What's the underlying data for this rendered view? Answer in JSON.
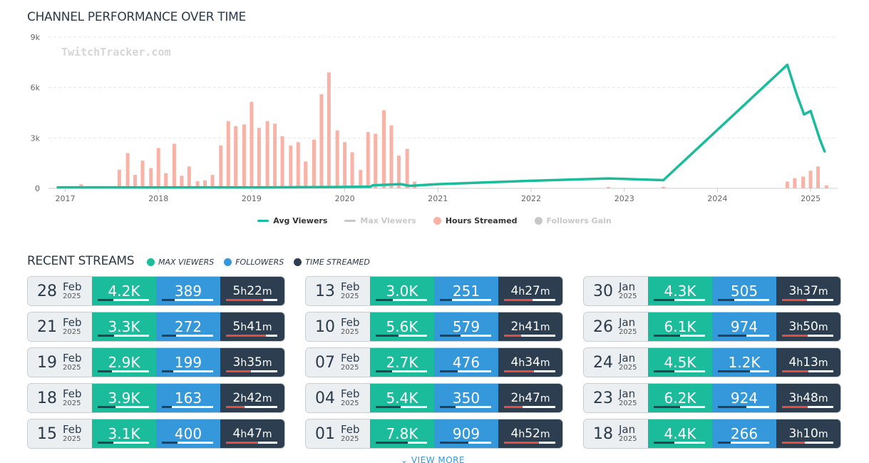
{
  "chart_section": {
    "title": "CHANNEL PERFORMANCE OVER TIME",
    "watermark": "TwitchTracker.com"
  },
  "chart_data": {
    "type": "line",
    "x_range": [
      2016.82,
      2025.29
    ],
    "ylim": [
      0,
      9000
    ],
    "y_ticks": [
      {
        "value": 0,
        "label": "0"
      },
      {
        "value": 3000,
        "label": "3k"
      },
      {
        "value": 6000,
        "label": "6k"
      },
      {
        "value": 9000,
        "label": "9k"
      }
    ],
    "x_ticks": [
      {
        "value": 2017,
        "label": "2017"
      },
      {
        "value": 2018,
        "label": "2018"
      },
      {
        "value": 2019,
        "label": "2019"
      },
      {
        "value": 2020,
        "label": "2020"
      },
      {
        "value": 2021,
        "label": "2021"
      },
      {
        "value": 2022,
        "label": "2022"
      },
      {
        "value": 2023,
        "label": "2023"
      },
      {
        "value": 2024,
        "label": "2024"
      },
      {
        "value": 2025,
        "label": "2025"
      }
    ],
    "grid": true,
    "legend_position": "bottom",
    "series": [
      {
        "name": "Avg Viewers",
        "kind": "line",
        "color": "#1abc9c",
        "visible": true,
        "points": [
          [
            2016.92,
            60
          ],
          [
            2017.5,
            60
          ],
          [
            2018.0,
            50
          ],
          [
            2018.5,
            60
          ],
          [
            2019.0,
            50
          ],
          [
            2019.5,
            70
          ],
          [
            2019.9,
            80
          ],
          [
            2020.28,
            100
          ],
          [
            2020.3,
            180
          ],
          [
            2020.6,
            250
          ],
          [
            2020.7,
            150
          ],
          [
            2021.0,
            250
          ],
          [
            2022.0,
            450
          ],
          [
            2022.83,
            590
          ],
          [
            2023.0,
            560
          ],
          [
            2023.42,
            490
          ],
          [
            2024.75,
            7350
          ],
          [
            2024.85,
            5600
          ],
          [
            2024.93,
            4400
          ],
          [
            2025.0,
            4600
          ],
          [
            2025.1,
            2900
          ],
          [
            2025.15,
            2200
          ]
        ]
      },
      {
        "name": "Max Viewers",
        "kind": "line",
        "color": "#c8c8c8",
        "visible": false,
        "points": []
      },
      {
        "name": "Hours Streamed",
        "kind": "bar",
        "color": "#f9b2a6",
        "visible": true,
        "points": [
          [
            2017.17,
            240
          ],
          [
            2017.58,
            1100
          ],
          [
            2017.67,
            2100
          ],
          [
            2017.75,
            800
          ],
          [
            2017.83,
            1650
          ],
          [
            2017.92,
            1200
          ],
          [
            2018.0,
            2400
          ],
          [
            2018.08,
            900
          ],
          [
            2018.17,
            2650
          ],
          [
            2018.25,
            750
          ],
          [
            2018.33,
            1300
          ],
          [
            2018.42,
            420
          ],
          [
            2018.5,
            480
          ],
          [
            2018.58,
            800
          ],
          [
            2018.67,
            2550
          ],
          [
            2018.75,
            4000
          ],
          [
            2018.83,
            3700
          ],
          [
            2018.92,
            3800
          ],
          [
            2019.0,
            5150
          ],
          [
            2019.08,
            3600
          ],
          [
            2019.17,
            4000
          ],
          [
            2019.25,
            3850
          ],
          [
            2019.33,
            3100
          ],
          [
            2019.42,
            2550
          ],
          [
            2019.5,
            2750
          ],
          [
            2019.58,
            1600
          ],
          [
            2019.67,
            2900
          ],
          [
            2019.75,
            5600
          ],
          [
            2019.83,
            6900
          ],
          [
            2019.92,
            3450
          ],
          [
            2020.0,
            2750
          ],
          [
            2020.08,
            2150
          ],
          [
            2020.17,
            1100
          ],
          [
            2020.25,
            3350
          ],
          [
            2020.33,
            3250
          ],
          [
            2020.42,
            4650
          ],
          [
            2020.5,
            3750
          ],
          [
            2020.58,
            1950
          ],
          [
            2020.67,
            2350
          ],
          [
            2020.75,
            400
          ],
          [
            2022.83,
            80
          ],
          [
            2023.42,
            90
          ],
          [
            2024.75,
            400
          ],
          [
            2024.83,
            600
          ],
          [
            2024.92,
            700
          ],
          [
            2025.0,
            1050
          ],
          [
            2025.08,
            1300
          ],
          [
            2025.17,
            180
          ]
        ]
      },
      {
        "name": "Followers Gain",
        "kind": "bar",
        "color": "#c8c8c8",
        "visible": false,
        "points": []
      }
    ]
  },
  "recent": {
    "title": "RECENT STREAMS",
    "legend": [
      {
        "label": "MAX VIEWERS",
        "color": "#1abc9c"
      },
      {
        "label": "FOLLOWERS",
        "color": "#3498db"
      },
      {
        "label": "TIME STREAMED",
        "color": "#2c3e50"
      }
    ],
    "view_more": "⌄ VIEW MORE",
    "columns": [
      [
        {
          "day": "28",
          "mon": "Feb",
          "year": "2025",
          "viewers": "4.2K",
          "followers": "389",
          "h": "5",
          "m": "22",
          "vfill": 0.3,
          "ffill": 0.25,
          "tfill": 0.72
        },
        {
          "day": "21",
          "mon": "Feb",
          "year": "2025",
          "viewers": "3.3K",
          "followers": "272",
          "h": "5",
          "m": "41",
          "vfill": 0.32,
          "ffill": 0.28,
          "tfill": 0.78
        },
        {
          "day": "19",
          "mon": "Feb",
          "year": "2025",
          "viewers": "2.9K",
          "followers": "199",
          "h": "3",
          "m": "35",
          "vfill": 0.28,
          "ffill": 0.22,
          "tfill": 0.48
        },
        {
          "day": "18",
          "mon": "Feb",
          "year": "2025",
          "viewers": "3.9K",
          "followers": "163",
          "h": "2",
          "m": "42",
          "vfill": 0.35,
          "ffill": 0.2,
          "tfill": 0.36
        },
        {
          "day": "15",
          "mon": "Feb",
          "year": "2025",
          "viewers": "3.1K",
          "followers": "400",
          "h": "4",
          "m": "47",
          "vfill": 0.3,
          "ffill": 0.3,
          "tfill": 0.62
        }
      ],
      [
        {
          "day": "13",
          "mon": "Feb",
          "year": "2025",
          "viewers": "3.0K",
          "followers": "251",
          "h": "4",
          "m": "27",
          "vfill": 0.34,
          "ffill": 0.24,
          "tfill": 0.55
        },
        {
          "day": "10",
          "mon": "Feb",
          "year": "2025",
          "viewers": "5.6K",
          "followers": "579",
          "h": "2",
          "m": "41",
          "vfill": 0.45,
          "ffill": 0.4,
          "tfill": 0.33
        },
        {
          "day": "07",
          "mon": "Feb",
          "year": "2025",
          "viewers": "2.7K",
          "followers": "476",
          "h": "4",
          "m": "34",
          "vfill": 0.32,
          "ffill": 0.35,
          "tfill": 0.58
        },
        {
          "day": "04",
          "mon": "Feb",
          "year": "2025",
          "viewers": "5.4K",
          "followers": "350",
          "h": "2",
          "m": "47",
          "vfill": 0.48,
          "ffill": 0.3,
          "tfill": 0.36
        },
        {
          "day": "01",
          "mon": "Feb",
          "year": "2025",
          "viewers": "7.8K",
          "followers": "909",
          "h": "4",
          "m": "52",
          "vfill": 0.62,
          "ffill": 0.55,
          "tfill": 0.68
        }
      ],
      [
        {
          "day": "30",
          "mon": "Jan",
          "year": "2025",
          "viewers": "4.3K",
          "followers": "505",
          "h": "3",
          "m": "37",
          "vfill": 0.4,
          "ffill": 0.32,
          "tfill": 0.48
        },
        {
          "day": "26",
          "mon": "Jan",
          "year": "2025",
          "viewers": "6.1K",
          "followers": "974",
          "h": "3",
          "m": "50",
          "vfill": 0.52,
          "ffill": 0.55,
          "tfill": 0.5
        },
        {
          "day": "24",
          "mon": "Jan",
          "year": "2025",
          "viewers": "4.5K",
          "followers": "1.2K",
          "h": "4",
          "m": "13",
          "vfill": 0.4,
          "ffill": 0.62,
          "tfill": 0.52
        },
        {
          "day": "23",
          "mon": "Jan",
          "year": "2025",
          "viewers": "6.2K",
          "followers": "924",
          "h": "3",
          "m": "48",
          "vfill": 0.52,
          "ffill": 0.55,
          "tfill": 0.5
        },
        {
          "day": "18",
          "mon": "Jan",
          "year": "2025",
          "viewers": "4.4K",
          "followers": "266",
          "h": "3",
          "m": "10",
          "vfill": 0.4,
          "ffill": 0.25,
          "tfill": 0.45
        }
      ]
    ]
  }
}
